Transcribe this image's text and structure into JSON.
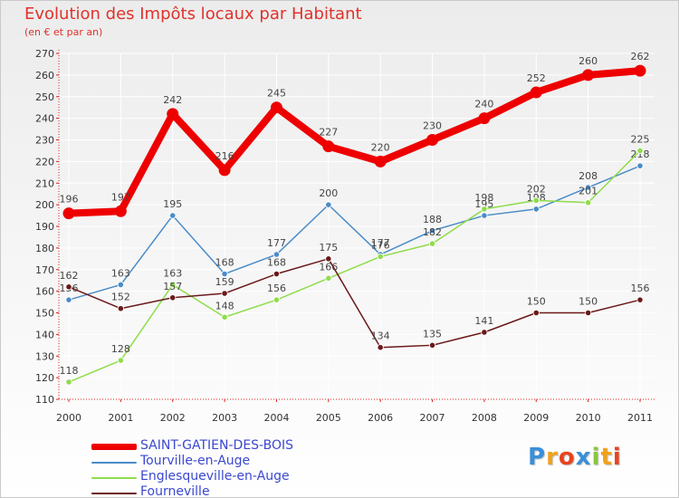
{
  "title": "Evolution des Impôts locaux par Habitant",
  "subtitle": "(en € et par an)",
  "logo": {
    "text": "Proxiti",
    "letters": [
      "P",
      "r",
      "o",
      "x",
      "i",
      "t",
      "i"
    ],
    "colors": [
      "#3a8fd8",
      "#f0a21b",
      "#e8431f",
      "#3a8fd8",
      "#8cc63f",
      "#f0a21b",
      "#e8431f"
    ]
  },
  "chart_data": {
    "type": "line",
    "title": "Evolution des Impôts locaux par Habitant",
    "subtitle": "(en € et par an)",
    "xlabel": "",
    "ylabel": "",
    "categories": [
      "2000",
      "2001",
      "2002",
      "2003",
      "2004",
      "2005",
      "2006",
      "2007",
      "2008",
      "2009",
      "2010",
      "2011"
    ],
    "ylim": [
      110,
      270
    ],
    "yticks": [
      110,
      120,
      130,
      140,
      150,
      160,
      170,
      180,
      190,
      200,
      210,
      220,
      230,
      240,
      250,
      260,
      270
    ],
    "grid": true,
    "legend_position": "bottom-left",
    "series": [
      {
        "name": "SAINT-GATIEN-DES-BOIS",
        "color": "#ee0000",
        "values": [
          196,
          197,
          242,
          216,
          245,
          227,
          220,
          230,
          240,
          252,
          260,
          262
        ],
        "labels": [
          "196",
          "197",
          "242",
          "216",
          "245",
          "227",
          "220",
          "230",
          "240",
          "252",
          "260",
          "262"
        ]
      },
      {
        "name": "Tourville-en-Auge",
        "color": "#4a8cc8",
        "values": [
          156,
          163,
          195,
          168,
          177,
          200,
          177,
          188,
          195,
          198,
          208,
          218
        ],
        "labels": [
          "156",
          "163",
          "195",
          "168",
          "177",
          "200",
          "177",
          "188",
          "195",
          "198",
          "208",
          "218"
        ]
      },
      {
        "name": "Englesqueville-en-Auge",
        "color": "#8fdc4a",
        "values": [
          118,
          128,
          163,
          148,
          156,
          166,
          176,
          182,
          198,
          202,
          201,
          225
        ],
        "labels": [
          "118",
          "128",
          "163",
          "148",
          "156",
          "166",
          "176",
          "182",
          "198",
          "202",
          "201",
          "225"
        ]
      },
      {
        "name": "Fourneville",
        "color": "#6b1a1a",
        "values": [
          162,
          152,
          157,
          159,
          168,
          175,
          134,
          135,
          141,
          150,
          150,
          156
        ],
        "labels": [
          "162",
          "152",
          "157",
          "159",
          "168",
          "175",
          "134",
          "135",
          "141",
          "150",
          "150",
          "156"
        ]
      }
    ]
  }
}
